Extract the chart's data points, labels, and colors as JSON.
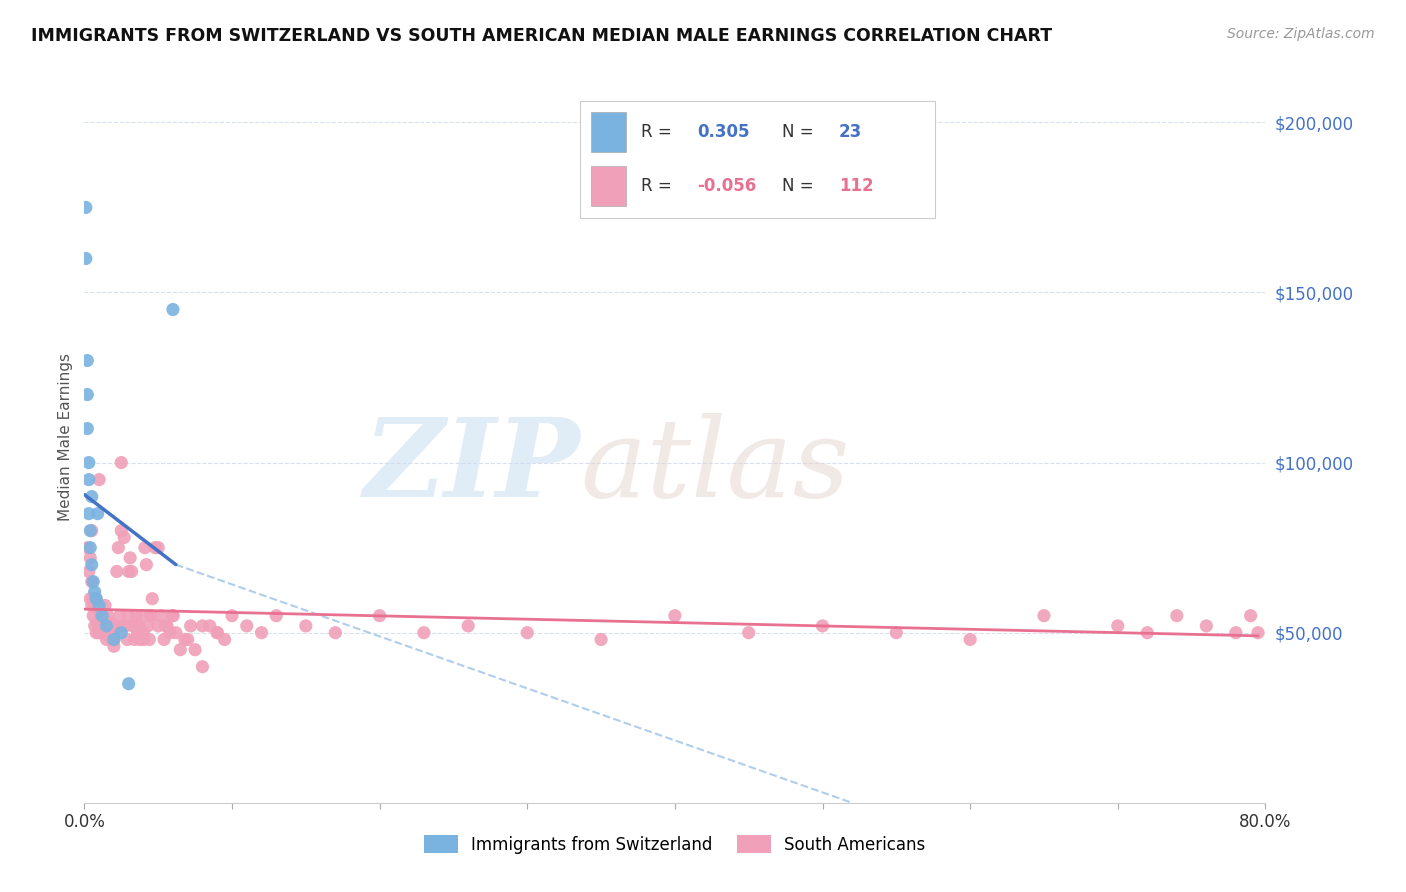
{
  "title": "IMMIGRANTS FROM SWITZERLAND VS SOUTH AMERICAN MEDIAN MALE EARNINGS CORRELATION CHART",
  "source": "Source: ZipAtlas.com",
  "ylabel": "Median Male Earnings",
  "ytick_labels": [
    "$50,000",
    "$100,000",
    "$150,000",
    "$200,000"
  ],
  "ytick_values": [
    50000,
    100000,
    150000,
    200000
  ],
  "blue_scatter_color": "#7ab3e0",
  "pink_scatter_color": "#f0a0b8",
  "blue_line_color": "#4472c4",
  "pink_line_color": "#e87090",
  "dashed_line_color": "#a8c8e8",
  "ytick_color": "#4472c4",
  "legend_label1": "Immigrants from Switzerland",
  "legend_label2": "South Americans",
  "xlim": [
    0.0,
    0.8
  ],
  "ylim": [
    0,
    215000
  ],
  "xticks": [
    0.0,
    0.1,
    0.2,
    0.3,
    0.4,
    0.5,
    0.6,
    0.7,
    0.8
  ],
  "swiss_x": [
    0.001,
    0.001,
    0.002,
    0.002,
    0.003,
    0.003,
    0.004,
    0.004,
    0.005,
    0.005,
    0.006,
    0.007,
    0.008,
    0.009,
    0.01,
    0.012,
    0.015,
    0.02,
    0.025,
    0.03,
    0.002,
    0.003,
    0.06
  ],
  "swiss_y": [
    175000,
    160000,
    120000,
    110000,
    95000,
    85000,
    80000,
    75000,
    90000,
    70000,
    65000,
    62000,
    60000,
    85000,
    58000,
    55000,
    52000,
    48000,
    50000,
    35000,
    130000,
    100000,
    145000
  ],
  "sa_x": [
    0.002,
    0.003,
    0.004,
    0.004,
    0.005,
    0.005,
    0.006,
    0.006,
    0.007,
    0.007,
    0.008,
    0.008,
    0.009,
    0.009,
    0.01,
    0.01,
    0.011,
    0.011,
    0.012,
    0.013,
    0.013,
    0.014,
    0.015,
    0.015,
    0.016,
    0.017,
    0.017,
    0.018,
    0.019,
    0.02,
    0.02,
    0.021,
    0.022,
    0.023,
    0.024,
    0.025,
    0.026,
    0.027,
    0.028,
    0.029,
    0.03,
    0.031,
    0.032,
    0.033,
    0.034,
    0.035,
    0.036,
    0.037,
    0.038,
    0.039,
    0.04,
    0.041,
    0.042,
    0.043,
    0.044,
    0.045,
    0.046,
    0.048,
    0.05,
    0.052,
    0.054,
    0.056,
    0.058,
    0.06,
    0.062,
    0.065,
    0.068,
    0.072,
    0.075,
    0.08,
    0.085,
    0.09,
    0.095,
    0.1,
    0.11,
    0.12,
    0.13,
    0.15,
    0.17,
    0.2,
    0.23,
    0.26,
    0.3,
    0.35,
    0.4,
    0.45,
    0.5,
    0.55,
    0.6,
    0.65,
    0.7,
    0.72,
    0.74,
    0.76,
    0.78,
    0.79,
    0.795,
    0.005,
    0.01,
    0.015,
    0.02,
    0.025,
    0.03,
    0.035,
    0.04,
    0.045,
    0.05,
    0.055,
    0.06,
    0.07,
    0.08,
    0.09
  ],
  "sa_y": [
    75000,
    68000,
    72000,
    60000,
    65000,
    58000,
    60000,
    55000,
    58000,
    52000,
    60000,
    50000,
    57000,
    53000,
    58000,
    50000,
    56000,
    52000,
    54000,
    54000,
    50000,
    58000,
    52000,
    48000,
    55000,
    53000,
    49000,
    52000,
    48000,
    50000,
    46000,
    52000,
    68000,
    75000,
    55000,
    100000,
    52000,
    78000,
    52000,
    48000,
    55000,
    72000,
    68000,
    52000,
    48000,
    55000,
    50000,
    52000,
    48000,
    55000,
    50000,
    75000,
    70000,
    52000,
    48000,
    55000,
    60000,
    75000,
    52000,
    55000,
    48000,
    52000,
    50000,
    55000,
    50000,
    45000,
    48000,
    52000,
    45000,
    40000,
    52000,
    50000,
    48000,
    55000,
    52000,
    50000,
    55000,
    52000,
    50000,
    55000,
    50000,
    52000,
    50000,
    48000,
    55000,
    50000,
    52000,
    50000,
    48000,
    55000,
    52000,
    50000,
    55000,
    52000,
    50000,
    55000,
    50000,
    80000,
    95000,
    52000,
    48000,
    80000,
    68000,
    52000,
    48000,
    55000,
    75000,
    52000,
    55000,
    48000,
    52000,
    50000
  ]
}
